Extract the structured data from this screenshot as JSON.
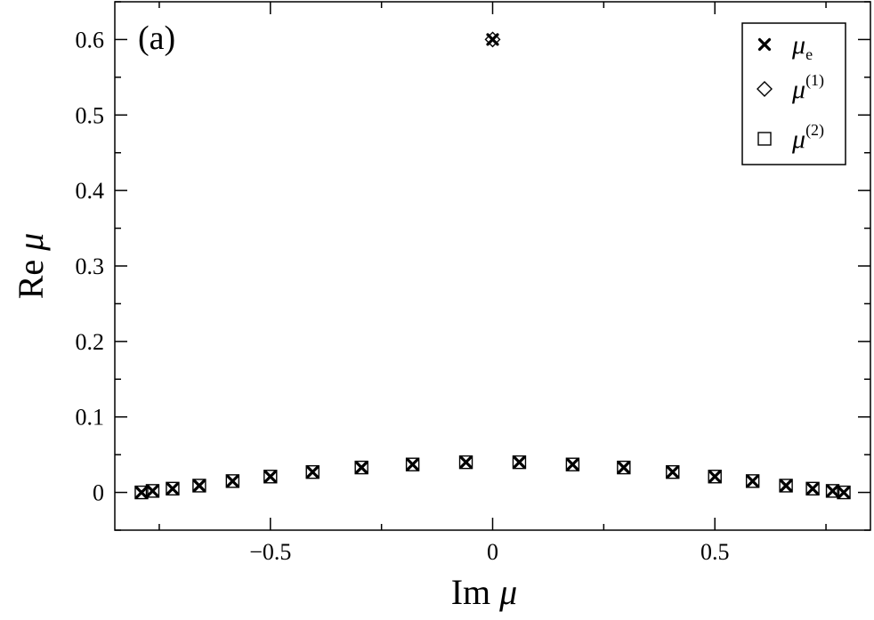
{
  "chart_data": {
    "type": "scatter",
    "panel_label": "(a)",
    "xlabel": {
      "name": "Im",
      "symbol": "μ"
    },
    "ylabel": {
      "name": "Re",
      "symbol": "μ"
    },
    "xlim": [
      -0.85,
      0.85
    ],
    "ylim": [
      -0.05,
      0.65
    ],
    "x_ticks": [
      -0.5,
      0,
      0.5
    ],
    "x_tick_labels": [
      "−0.5",
      "0",
      "0.5"
    ],
    "y_ticks": [
      0,
      0.1,
      0.2,
      0.3,
      0.4,
      0.5,
      0.6
    ],
    "y_tick_labels": [
      "0",
      "0.1",
      "0.2",
      "0.3",
      "0.4",
      "0.5",
      "0.6"
    ],
    "legend_position": "top-right",
    "grid": false,
    "series": [
      {
        "name": "μe",
        "label": {
          "base": "μ",
          "sub": "e",
          "sup": ""
        },
        "marker": "cross",
        "points": [
          [
            -0.79,
            0.0
          ],
          [
            -0.765,
            0.002
          ],
          [
            -0.72,
            0.005
          ],
          [
            -0.66,
            0.009
          ],
          [
            -0.585,
            0.015
          ],
          [
            -0.5,
            0.021
          ],
          [
            -0.405,
            0.027
          ],
          [
            -0.295,
            0.033
          ],
          [
            -0.18,
            0.037
          ],
          [
            -0.06,
            0.04
          ],
          [
            0.0,
            0.6
          ],
          [
            0.06,
            0.04
          ],
          [
            0.18,
            0.037
          ],
          [
            0.295,
            0.033
          ],
          [
            0.405,
            0.027
          ],
          [
            0.5,
            0.021
          ],
          [
            0.585,
            0.015
          ],
          [
            0.66,
            0.009
          ],
          [
            0.72,
            0.005
          ],
          [
            0.765,
            0.002
          ],
          [
            0.79,
            0.0
          ]
        ]
      },
      {
        "name": "μ(1)",
        "label": {
          "base": "μ",
          "sub": "",
          "sup": "(1)"
        },
        "marker": "diamond",
        "points": [
          [
            0.0,
            0.6
          ]
        ]
      },
      {
        "name": "μ(2)",
        "label": {
          "base": "μ",
          "sub": "",
          "sup": "(2)"
        },
        "marker": "square",
        "points": [
          [
            -0.79,
            0.0
          ],
          [
            -0.765,
            0.002
          ],
          [
            -0.72,
            0.005
          ],
          [
            -0.66,
            0.009
          ],
          [
            -0.585,
            0.015
          ],
          [
            -0.5,
            0.021
          ],
          [
            -0.405,
            0.027
          ],
          [
            -0.295,
            0.033
          ],
          [
            -0.18,
            0.037
          ],
          [
            -0.06,
            0.04
          ],
          [
            0.06,
            0.04
          ],
          [
            0.18,
            0.037
          ],
          [
            0.295,
            0.033
          ],
          [
            0.405,
            0.027
          ],
          [
            0.5,
            0.021
          ],
          [
            0.585,
            0.015
          ],
          [
            0.66,
            0.009
          ],
          [
            0.72,
            0.005
          ],
          [
            0.765,
            0.002
          ],
          [
            0.79,
            0.0
          ]
        ]
      }
    ]
  }
}
